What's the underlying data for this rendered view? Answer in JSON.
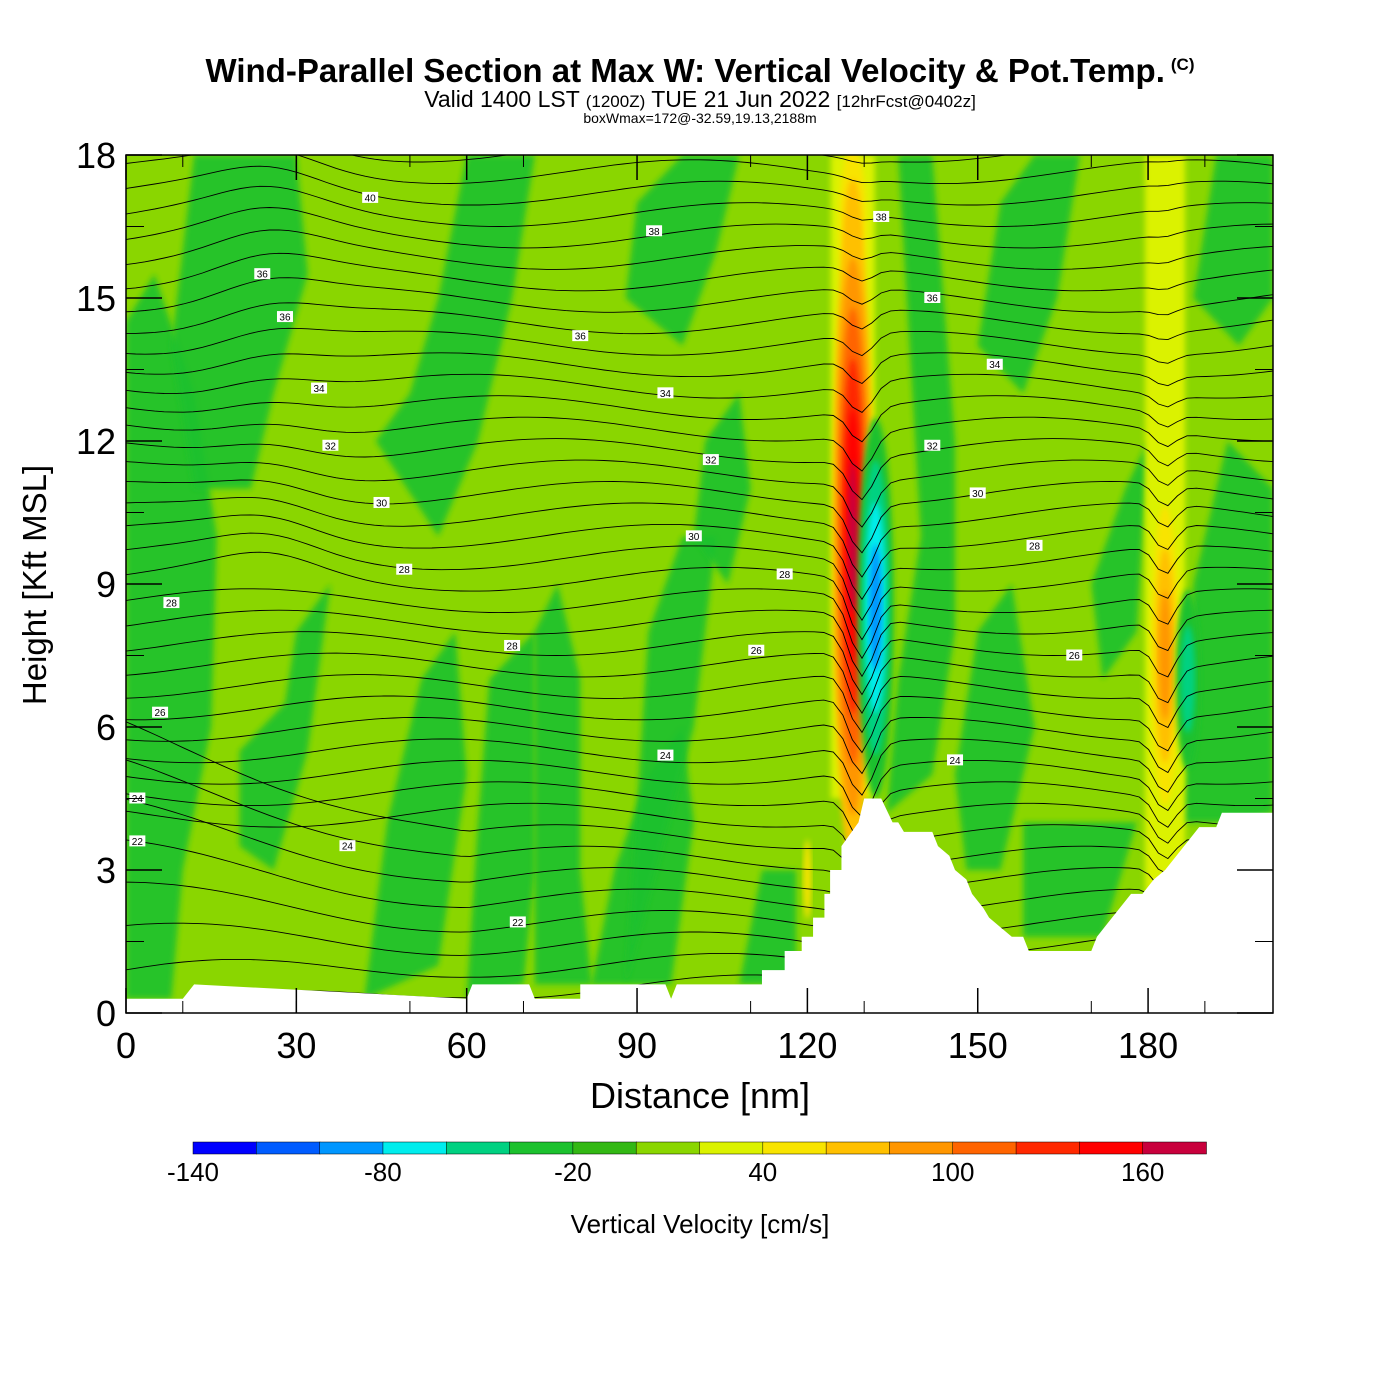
{
  "title": {
    "main": "Wind-Parallel Section at Max W: Vertical Velocity & Pot.Temp.",
    "copyright": "(C)",
    "valid_prefix": "Valid 1400 LST",
    "valid_utc": "(1200Z)",
    "valid_date": "TUE 21 Jun 2022",
    "forecast": "[12hrFcst@0402z]",
    "box_info": "boxWmax=172@-32.59,19.13,2188m"
  },
  "colors": {
    "background_green": "#8ad600",
    "bands": [
      "#0000ff",
      "#005cff",
      "#0096ff",
      "#00eded",
      "#00d181",
      "#1cc12e",
      "#33b814",
      "#8ad600",
      "#dbf200",
      "#f8e400",
      "#ffc000",
      "#ff9600",
      "#ff6400",
      "#ff2800",
      "#ff0000",
      "#c8003c"
    ]
  },
  "chart_data": {
    "type": "heatmap",
    "xlabel": "Distance [nm]",
    "ylabel": "Height [Kft MSL]",
    "xlim": [
      0,
      202
    ],
    "ylim": [
      0,
      18
    ],
    "x_ticks": [
      0,
      30,
      60,
      90,
      120,
      150,
      180
    ],
    "y_ticks": [
      0,
      3,
      6,
      9,
      12,
      15,
      18
    ],
    "colorbar": {
      "label": "Vertical Velocity [cm/s]",
      "levels": [
        -140,
        -120,
        -100,
        -80,
        -60,
        -40,
        -20,
        0,
        20,
        40,
        60,
        80,
        100,
        120,
        140,
        160,
        180
      ],
      "tick_labels": [
        -140,
        -80,
        -20,
        40,
        100,
        160
      ]
    },
    "updraft_cores": [
      {
        "x": 128,
        "height_range": [
          4.5,
          18
        ],
        "max_cm_s": 172,
        "max_height_kft": 9.0
      },
      {
        "x": 183,
        "height_range": [
          2.5,
          18
        ],
        "max_cm_s": 100,
        "max_height_kft": 6.0
      }
    ],
    "downdraft_cores": [
      {
        "x": 132,
        "height_range": [
          6.5,
          12
        ],
        "min_cm_s": -120
      }
    ],
    "terrain": [
      [
        0,
        0.3
      ],
      [
        10,
        0.3
      ],
      [
        12,
        0.6
      ],
      [
        60,
        0.3
      ],
      [
        61,
        0.6
      ],
      [
        71,
        0.6
      ],
      [
        72,
        0.3
      ],
      [
        80,
        0.3
      ],
      [
        80,
        0.6
      ],
      [
        95,
        0.6
      ],
      [
        96,
        0.3
      ],
      [
        97,
        0.6
      ],
      [
        112,
        0.6
      ],
      [
        112,
        0.9
      ],
      [
        116,
        0.9
      ],
      [
        116,
        1.3
      ],
      [
        119,
        1.3
      ],
      [
        119,
        1.6
      ],
      [
        121,
        1.6
      ],
      [
        121,
        2.0
      ],
      [
        123,
        2.0
      ],
      [
        123,
        2.5
      ],
      [
        124,
        2.5
      ],
      [
        124,
        3.0
      ],
      [
        126,
        3.0
      ],
      [
        126,
        3.5
      ],
      [
        129,
        4.0
      ],
      [
        130,
        4.5
      ],
      [
        133,
        4.5
      ],
      [
        135,
        4.0
      ],
      [
        136,
        4.0
      ],
      [
        137,
        3.8
      ],
      [
        142,
        3.8
      ],
      [
        143,
        3.5
      ],
      [
        145,
        3.3
      ],
      [
        146,
        3.0
      ],
      [
        148,
        2.8
      ],
      [
        149,
        2.5
      ],
      [
        151,
        2.2
      ],
      [
        152,
        2.0
      ],
      [
        154,
        1.8
      ],
      [
        156,
        1.6
      ],
      [
        158,
        1.6
      ],
      [
        159,
        1.3
      ],
      [
        170,
        1.3
      ],
      [
        171,
        1.6
      ],
      [
        173,
        1.9
      ],
      [
        175,
        2.2
      ],
      [
        177,
        2.5
      ],
      [
        179,
        2.5
      ],
      [
        181,
        2.8
      ],
      [
        183,
        3.0
      ],
      [
        185,
        3.3
      ],
      [
        187,
        3.6
      ],
      [
        189,
        3.9
      ],
      [
        192,
        3.9
      ],
      [
        193,
        4.2
      ],
      [
        202,
        4.2
      ]
    ],
    "theta_contour_labels": [
      {
        "text": "40",
        "x": 43,
        "y": 17.1
      },
      {
        "text": "38",
        "x": 93,
        "y": 16.4
      },
      {
        "text": "38",
        "x": 133,
        "y": 16.7
      },
      {
        "text": "36",
        "x": 24,
        "y": 15.5
      },
      {
        "text": "36",
        "x": 28,
        "y": 14.6
      },
      {
        "text": "36",
        "x": 80,
        "y": 14.2
      },
      {
        "text": "36",
        "x": 142,
        "y": 15.0
      },
      {
        "text": "34",
        "x": 34,
        "y": 13.1
      },
      {
        "text": "34",
        "x": 95,
        "y": 13.0
      },
      {
        "text": "34",
        "x": 153,
        "y": 13.6
      },
      {
        "text": "32",
        "x": 36,
        "y": 11.9
      },
      {
        "text": "32",
        "x": 103,
        "y": 11.6
      },
      {
        "text": "32",
        "x": 142,
        "y": 11.9
      },
      {
        "text": "30",
        "x": 45,
        "y": 10.7
      },
      {
        "text": "30",
        "x": 100,
        "y": 10.0
      },
      {
        "text": "30",
        "x": 150,
        "y": 10.9
      },
      {
        "text": "28",
        "x": 8,
        "y": 8.6
      },
      {
        "text": "28",
        "x": 49,
        "y": 9.3
      },
      {
        "text": "28",
        "x": 68,
        "y": 7.7
      },
      {
        "text": "28",
        "x": 116,
        "y": 9.2
      },
      {
        "text": "28",
        "x": 160,
        "y": 9.8
      },
      {
        "text": "26",
        "x": 6,
        "y": 6.3
      },
      {
        "text": "26",
        "x": 111,
        "y": 7.6
      },
      {
        "text": "26",
        "x": 167,
        "y": 7.5
      },
      {
        "text": "24",
        "x": 2,
        "y": 4.5
      },
      {
        "text": "24",
        "x": 39,
        "y": 3.5
      },
      {
        "text": "24",
        "x": 95,
        "y": 5.4
      },
      {
        "text": "24",
        "x": 146,
        "y": 5.3
      },
      {
        "text": "22",
        "x": 2,
        "y": 3.6
      },
      {
        "text": "22",
        "x": 69,
        "y": 1.9
      }
    ]
  }
}
